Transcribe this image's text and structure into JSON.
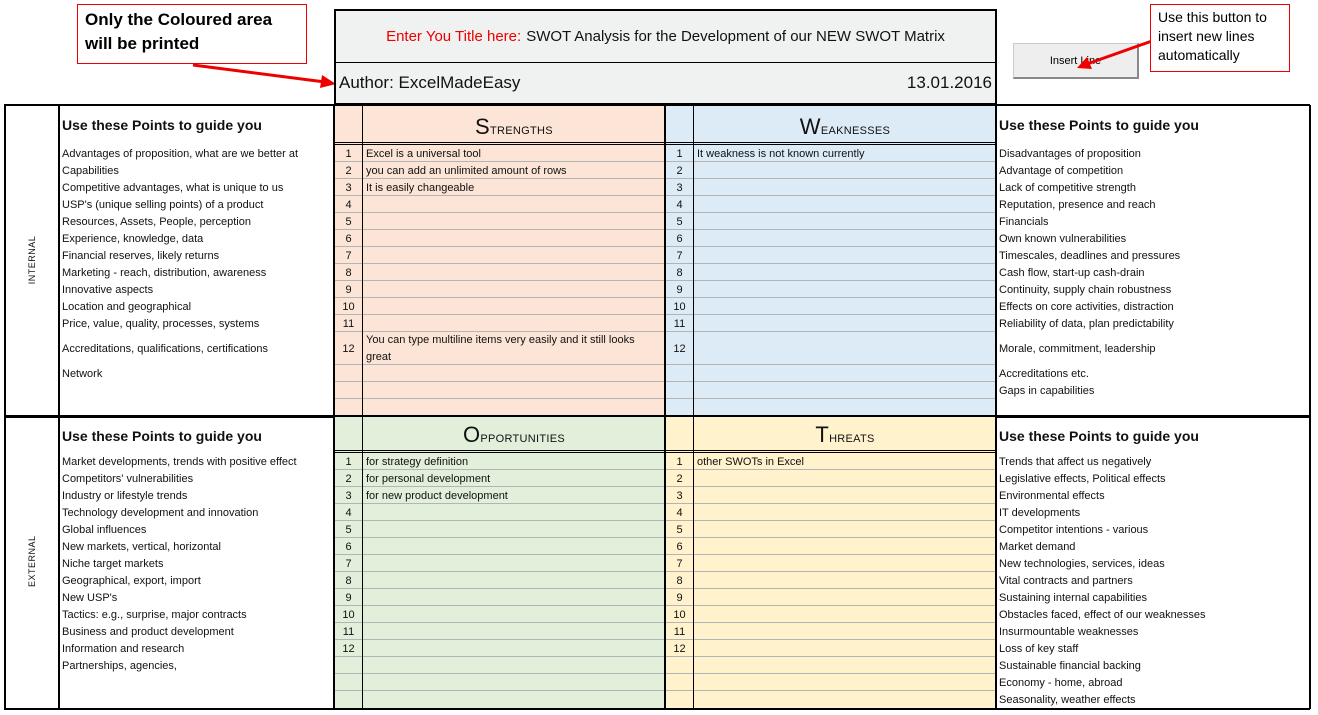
{
  "notes": {
    "print_area": "Only the Coloured area will be printed",
    "insert_hint": "Use this button to insert new lines automatically"
  },
  "header": {
    "title_prompt": "Enter You Title here:",
    "title": "SWOT Analysis for the Development of our NEW SWOT Matrix",
    "author": "Author: ExcelMadeEasy",
    "date": "13.01.2016"
  },
  "toolbar": {
    "insert_line": "Insert Line"
  },
  "colors": {
    "strengths": "#fce4d6",
    "weaknesses": "#ddebf7",
    "opportunities": "#e2efda",
    "threats": "#fff2cc",
    "header": "#f0f2f2",
    "accent_red": "#e00000"
  },
  "internal": {
    "side_label": "INTERNAL",
    "left_guide": {
      "heading": "Use these Points to guide you",
      "items": [
        "Advantages of proposition, what are we better at",
        "Capabilities",
        "Competitive advantages, what is unique to us",
        "USP's (unique selling points) of a product",
        "Resources, Assets, People, perception",
        "Experience, knowledge, data",
        "Financial reserves, likely returns",
        "Marketing - reach, distribution, awareness",
        "Innovative aspects",
        "Location and geographical",
        "Price, value, quality, processes, systems",
        "Accreditations, qualifications, certifications",
        "Network"
      ]
    },
    "strengths": {
      "cap": "S",
      "rest": "TRENGTHS",
      "numbers": [
        "1",
        "2",
        "3",
        "4",
        "5",
        "6",
        "7",
        "8",
        "9",
        "10",
        "11",
        "12"
      ],
      "items": [
        "Excel is a universal tool",
        "you can add an unlimited amount of rows",
        "It is easily changeable",
        "",
        "",
        "",
        "",
        "",
        "",
        "",
        "",
        "You can type multiline items very easily and it still looks great"
      ]
    },
    "weaknesses": {
      "cap": "W",
      "rest": "EAKNESSES",
      "numbers": [
        "1",
        "2",
        "3",
        "4",
        "5",
        "6",
        "7",
        "8",
        "9",
        "10",
        "11",
        "12"
      ],
      "items": [
        "It weakness is not known currently",
        "",
        "",
        "",
        "",
        "",
        "",
        "",
        "",
        "",
        "",
        ""
      ]
    },
    "right_guide": {
      "heading": "Use these Points to guide you",
      "items": [
        "Disadvantages of proposition",
        "Advantage of competition",
        "Lack of competitive strength",
        "Reputation, presence and reach",
        "Financials",
        "Own known vulnerabilities",
        "Timescales, deadlines and pressures",
        "Cash flow, start-up cash-drain",
        "Continuity, supply chain robustness",
        "Effects on core activities, distraction",
        "Reliability of data, plan predictability",
        "Morale, commitment, leadership",
        "Accreditations etc.",
        "Gaps in capabilities"
      ]
    }
  },
  "external": {
    "side_label": "EXTERNAL",
    "left_guide": {
      "heading": "Use these Points to guide you",
      "items": [
        "Market developments, trends with positive effect",
        "Competitors' vulnerabilities",
        "Industry or lifestyle trends",
        "Technology development and innovation",
        "Global influences",
        "New markets, vertical, horizontal",
        "Niche target markets",
        "Geographical, export, import",
        "New USP's",
        "Tactics: e.g., surprise, major contracts",
        "Business and product development",
        "Information and research",
        "Partnerships, agencies,"
      ]
    },
    "opportunities": {
      "cap": "O",
      "rest": "PPORTUNITIES",
      "numbers": [
        "1",
        "2",
        "3",
        "4",
        "5",
        "6",
        "7",
        "8",
        "9",
        "10",
        "11",
        "12"
      ],
      "items": [
        "for strategy definition",
        "for personal development",
        "for new product development",
        "",
        "",
        "",
        "",
        "",
        "",
        "",
        "",
        ""
      ]
    },
    "threats": {
      "cap": "T",
      "rest": "HREATS",
      "numbers": [
        "1",
        "2",
        "3",
        "4",
        "5",
        "6",
        "7",
        "8",
        "9",
        "10",
        "11",
        "12"
      ],
      "items": [
        "other SWOTs in Excel",
        "",
        "",
        "",
        "",
        "",
        "",
        "",
        "",
        "",
        "",
        ""
      ]
    },
    "right_guide": {
      "heading": "Use these Points to guide you",
      "items": [
        "Trends that affect us negatively",
        "Legislative effects, Political effects",
        "Environmental effects",
        "IT developments",
        "Competitor intentions - various",
        "Market demand",
        "New technologies, services, ideas",
        "Vital contracts and partners",
        "Sustaining internal capabilities",
        "Obstacles faced, effect of our weaknesses",
        "Insurmountable weaknesses",
        "Loss of key staff",
        "Sustainable financial backing",
        "Economy - home, abroad",
        "Seasonality, weather effects"
      ]
    }
  }
}
